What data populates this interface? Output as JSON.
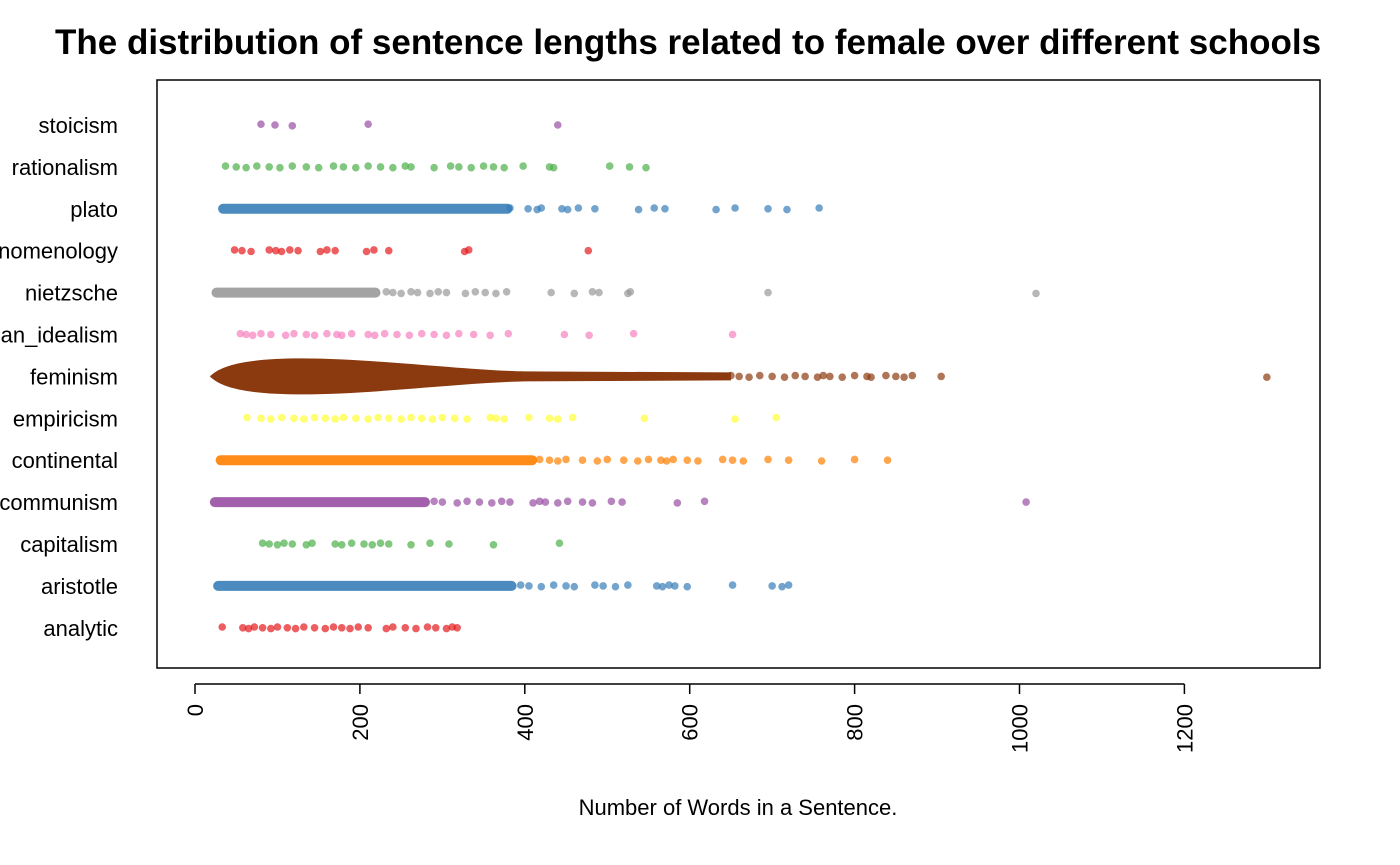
{
  "chart_data": {
    "type": "scatter",
    "title": "The distribution of sentence lengths related to female over different schools",
    "xlabel": "Number of Words in a Sentence.",
    "ylabel": "",
    "xlim": [
      0,
      1300
    ],
    "x_ticks": [
      0,
      200,
      400,
      600,
      800,
      1000,
      1200
    ],
    "x_tick_labels": [
      "0",
      "200",
      "400",
      "600",
      "800",
      "1000",
      "1200"
    ],
    "categories": [
      "stoicism",
      "rationalism",
      "plato",
      "phenomenology",
      "nietzsche",
      "german_idealism",
      "feminism",
      "empiricism",
      "continental",
      "communism",
      "capitalism",
      "aristotle",
      "analytic"
    ],
    "grid": false,
    "legend": "none",
    "series": [
      {
        "category": "stoicism",
        "color": "#984EA3",
        "min": 80,
        "max": 440,
        "points": [
          80,
          97,
          118,
          210,
          440
        ]
      },
      {
        "category": "rationalism",
        "color": "#4DAF4A",
        "min": 37,
        "max": 547,
        "points": [
          37,
          50,
          62,
          75,
          90,
          103,
          118,
          135,
          150,
          168,
          180,
          195,
          210,
          225,
          240,
          255,
          262,
          290,
          310,
          320,
          335,
          350,
          362,
          375,
          398,
          430,
          435,
          503,
          527,
          547
        ]
      },
      {
        "category": "plato",
        "color": "#377EB8",
        "min": 30,
        "max": 757,
        "points": [
          382,
          404,
          415,
          420,
          445,
          452,
          465,
          485,
          538,
          557,
          570,
          632,
          655,
          695,
          718,
          757
        ]
      },
      {
        "category": "phenomenology",
        "color": "#E41A1C",
        "min": 48,
        "max": 477,
        "points": [
          48,
          57,
          68,
          90,
          98,
          105,
          115,
          125,
          152,
          160,
          170,
          208,
          217,
          235,
          327,
          332,
          477
        ]
      },
      {
        "category": "nietzsche",
        "color": "#999999",
        "min": 22,
        "max": 1020,
        "points": [
          232,
          240,
          250,
          262,
          270,
          285,
          295,
          305,
          328,
          340,
          352,
          365,
          378,
          432,
          460,
          482,
          490,
          525,
          528,
          695,
          1020
        ]
      },
      {
        "category": "german_idealism",
        "color": "#F781BF",
        "min": 55,
        "max": 652,
        "points": [
          55,
          62,
          70,
          80,
          92,
          110,
          120,
          135,
          145,
          160,
          172,
          178,
          190,
          210,
          218,
          230,
          245,
          260,
          275,
          290,
          305,
          320,
          338,
          358,
          380,
          448,
          478,
          532,
          652
        ]
      },
      {
        "category": "feminism",
        "color": "#8B3A0F",
        "min": 20,
        "max": 1300,
        "points": [
          650,
          660,
          672,
          685,
          700,
          715,
          728,
          740,
          755,
          762,
          770,
          785,
          800,
          815,
          820,
          838,
          850,
          860,
          870,
          905,
          1300
        ]
      },
      {
        "category": "empiricism",
        "color": "#FFFF33",
        "min": 63,
        "max": 705,
        "points": [
          63,
          80,
          92,
          105,
          120,
          132,
          145,
          158,
          170,
          180,
          195,
          210,
          222,
          235,
          250,
          262,
          275,
          288,
          300,
          315,
          330,
          358,
          365,
          375,
          405,
          430,
          440,
          458,
          545,
          655,
          705
        ]
      },
      {
        "category": "continental",
        "color": "#FF7F00",
        "min": 28,
        "max": 840,
        "points": [
          418,
          430,
          440,
          450,
          470,
          488,
          500,
          520,
          537,
          550,
          565,
          572,
          580,
          597,
          610,
          640,
          652,
          665,
          695,
          720,
          760,
          800,
          840
        ]
      },
      {
        "category": "communism",
        "color": "#984EA3",
        "min": 20,
        "max": 1008,
        "points": [
          290,
          300,
          318,
          330,
          345,
          360,
          372,
          382,
          410,
          418,
          425,
          440,
          452,
          470,
          482,
          505,
          518,
          585,
          618,
          1008
        ]
      },
      {
        "category": "capitalism",
        "color": "#4DAF4A",
        "min": 82,
        "max": 442,
        "points": [
          82,
          90,
          100,
          108,
          118,
          135,
          142,
          170,
          178,
          190,
          205,
          215,
          225,
          235,
          262,
          285,
          308,
          362,
          442
        ]
      },
      {
        "category": "aristotle",
        "color": "#377EB8",
        "min": 22,
        "max": 720,
        "points": [
          395,
          405,
          420,
          435,
          450,
          460,
          485,
          495,
          510,
          525,
          560,
          567,
          575,
          582,
          597,
          652,
          700,
          712,
          720
        ]
      },
      {
        "category": "analytic",
        "color": "#E41A1C",
        "min": 33,
        "max": 318,
        "points": [
          33,
          58,
          65,
          72,
          82,
          92,
          100,
          112,
          122,
          132,
          145,
          158,
          168,
          178,
          188,
          198,
          210,
          232,
          240,
          255,
          268,
          282,
          292,
          305,
          312,
          318
        ]
      }
    ],
    "dense_bands": [
      {
        "category": "plato",
        "from": 28,
        "to": 385
      },
      {
        "category": "nietzsche",
        "from": 20,
        "to": 225
      },
      {
        "category": "feminism",
        "from": 18,
        "to": 650
      },
      {
        "category": "continental",
        "from": 25,
        "to": 415
      },
      {
        "category": "communism",
        "from": 18,
        "to": 285
      },
      {
        "category": "aristotle",
        "from": 22,
        "to": 390
      }
    ]
  }
}
